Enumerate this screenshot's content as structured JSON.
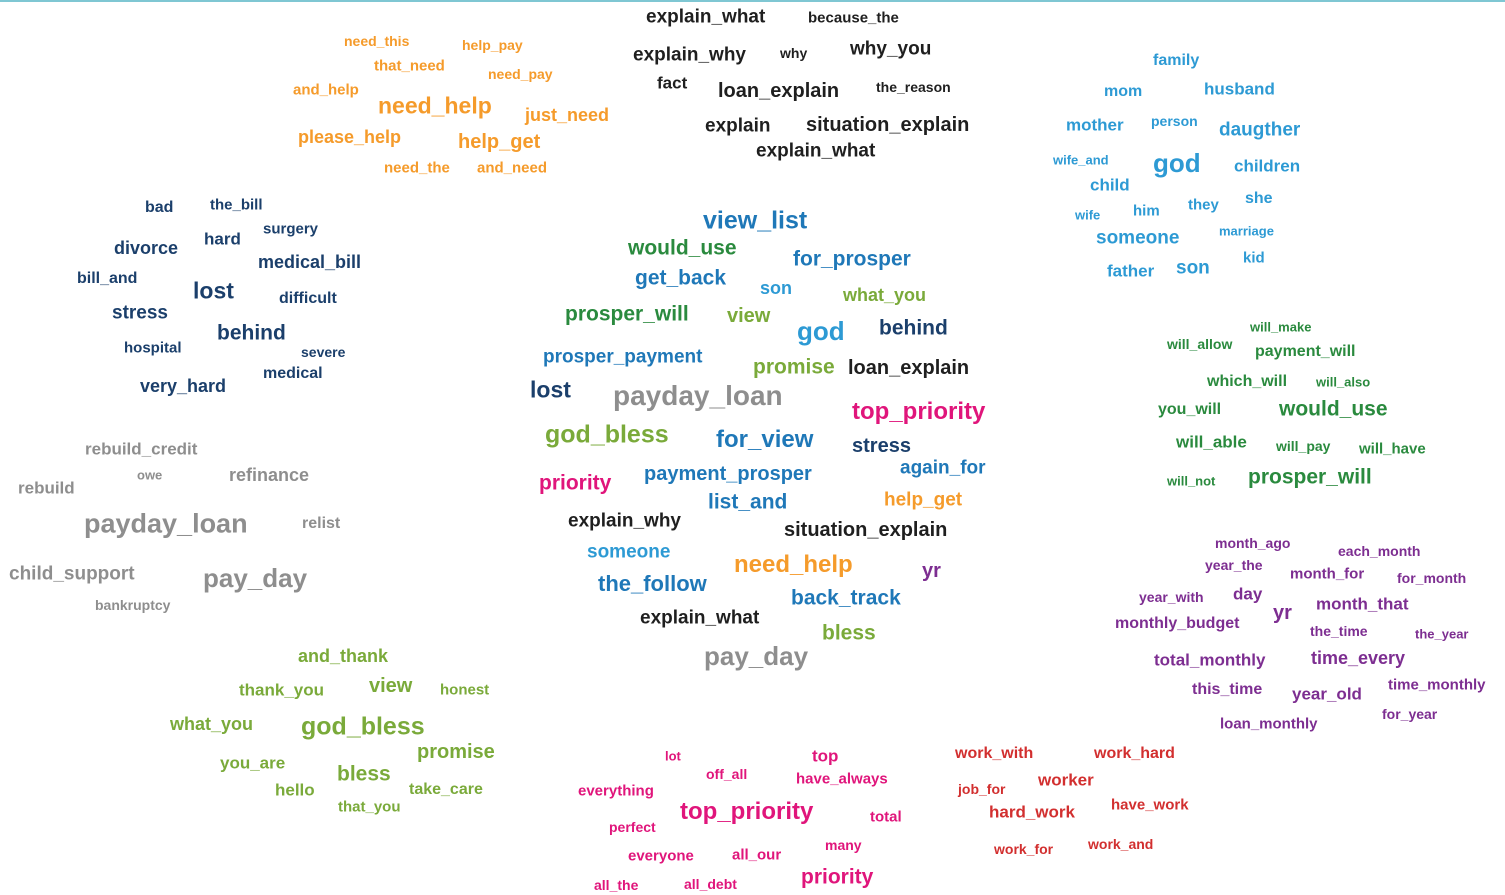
{
  "colors": {
    "orange": "#f59b2b",
    "black": "#1f1f1f",
    "lightblue": "#2d9ad4",
    "navy": "#1b3f6b",
    "gray": "#8e8e8e",
    "green": "#2a8a3e",
    "lime": "#7aaa3a",
    "blue": "#1f78b8",
    "magenta": "#e0157b",
    "purple": "#7d2e91",
    "red": "#d22f2f"
  },
  "words": [
    {
      "text": "need_this",
      "color": "orange",
      "size": 14
    },
    {
      "text": "help_pay",
      "color": "orange",
      "size": 14
    },
    {
      "text": "that_need",
      "color": "orange",
      "size": 15
    },
    {
      "text": "need_pay",
      "color": "orange",
      "size": 14
    },
    {
      "text": "and_help",
      "color": "orange",
      "size": 15
    },
    {
      "text": "need_help",
      "color": "orange",
      "size": 23
    },
    {
      "text": "just_need",
      "color": "orange",
      "size": 18
    },
    {
      "text": "please_help",
      "color": "orange",
      "size": 18
    },
    {
      "text": "help_get",
      "color": "orange",
      "size": 20
    },
    {
      "text": "need_the",
      "color": "orange",
      "size": 15
    },
    {
      "text": "and_need",
      "color": "orange",
      "size": 15
    },
    {
      "text": "explain_what",
      "color": "black",
      "size": 19
    },
    {
      "text": "because_the",
      "color": "black",
      "size": 15
    },
    {
      "text": "explain_why",
      "color": "black",
      "size": 19
    },
    {
      "text": "why",
      "color": "black",
      "size": 14
    },
    {
      "text": "why_you",
      "color": "black",
      "size": 19
    },
    {
      "text": "fact",
      "color": "black",
      "size": 17
    },
    {
      "text": "loan_explain",
      "color": "black",
      "size": 20
    },
    {
      "text": "the_reason",
      "color": "black",
      "size": 14
    },
    {
      "text": "explain",
      "color": "black",
      "size": 19
    },
    {
      "text": "situation_explain",
      "color": "black",
      "size": 20
    },
    {
      "text": "explain_what",
      "color": "black",
      "size": 19
    },
    {
      "text": "family",
      "color": "lightblue",
      "size": 16
    },
    {
      "text": "mom",
      "color": "lightblue",
      "size": 16
    },
    {
      "text": "husband",
      "color": "lightblue",
      "size": 17
    },
    {
      "text": "mother",
      "color": "lightblue",
      "size": 17
    },
    {
      "text": "person",
      "color": "lightblue",
      "size": 14
    },
    {
      "text": "daugther",
      "color": "lightblue",
      "size": 19
    },
    {
      "text": "wife_and",
      "color": "lightblue",
      "size": 13
    },
    {
      "text": "god",
      "color": "lightblue",
      "size": 26
    },
    {
      "text": "children",
      "color": "lightblue",
      "size": 17
    },
    {
      "text": "child",
      "color": "lightblue",
      "size": 17
    },
    {
      "text": "wife",
      "color": "lightblue",
      "size": 13
    },
    {
      "text": "him",
      "color": "lightblue",
      "size": 15
    },
    {
      "text": "they",
      "color": "lightblue",
      "size": 15
    },
    {
      "text": "she",
      "color": "lightblue",
      "size": 16
    },
    {
      "text": "someone",
      "color": "lightblue",
      "size": 19
    },
    {
      "text": "marriage",
      "color": "lightblue",
      "size": 13
    },
    {
      "text": "kid",
      "color": "lightblue",
      "size": 15
    },
    {
      "text": "father",
      "color": "lightblue",
      "size": 17
    },
    {
      "text": "son",
      "color": "lightblue",
      "size": 19
    },
    {
      "text": "bad",
      "color": "navy",
      "size": 16
    },
    {
      "text": "the_bill",
      "color": "navy",
      "size": 15
    },
    {
      "text": "surgery",
      "color": "navy",
      "size": 15
    },
    {
      "text": "hard",
      "color": "navy",
      "size": 17
    },
    {
      "text": "divorce",
      "color": "navy",
      "size": 18
    },
    {
      "text": "medical_bill",
      "color": "navy",
      "size": 18
    },
    {
      "text": "bill_and",
      "color": "navy",
      "size": 16
    },
    {
      "text": "lost",
      "color": "navy",
      "size": 23
    },
    {
      "text": "difficult",
      "color": "navy",
      "size": 16
    },
    {
      "text": "stress",
      "color": "navy",
      "size": 19
    },
    {
      "text": "behind",
      "color": "navy",
      "size": 21
    },
    {
      "text": "hospital",
      "color": "navy",
      "size": 15
    },
    {
      "text": "severe",
      "color": "navy",
      "size": 14
    },
    {
      "text": "medical",
      "color": "navy",
      "size": 16
    },
    {
      "text": "very_hard",
      "color": "navy",
      "size": 18
    },
    {
      "text": "rebuild_credit",
      "color": "gray",
      "size": 17
    },
    {
      "text": "owe",
      "color": "gray",
      "size": 13
    },
    {
      "text": "refinance",
      "color": "gray",
      "size": 18
    },
    {
      "text": "rebuild",
      "color": "gray",
      "size": 17
    },
    {
      "text": "payday_loan",
      "color": "gray",
      "size": 27
    },
    {
      "text": "relist",
      "color": "gray",
      "size": 16
    },
    {
      "text": "child_support",
      "color": "gray",
      "size": 19
    },
    {
      "text": "pay_day",
      "color": "gray",
      "size": 26
    },
    {
      "text": "bankruptcy",
      "color": "gray",
      "size": 14
    },
    {
      "text": "and_thank",
      "color": "lime",
      "size": 18
    },
    {
      "text": "thank_you",
      "color": "lime",
      "size": 17
    },
    {
      "text": "view",
      "color": "lime",
      "size": 20
    },
    {
      "text": "honest",
      "color": "lime",
      "size": 15
    },
    {
      "text": "what_you",
      "color": "lime",
      "size": 18
    },
    {
      "text": "god_bless",
      "color": "lime",
      "size": 25
    },
    {
      "text": "promise",
      "color": "lime",
      "size": 20
    },
    {
      "text": "you_are",
      "color": "lime",
      "size": 17
    },
    {
      "text": "bless",
      "color": "lime",
      "size": 21
    },
    {
      "text": "hello",
      "color": "lime",
      "size": 17
    },
    {
      "text": "take_care",
      "color": "lime",
      "size": 16
    },
    {
      "text": "that_you",
      "color": "lime",
      "size": 15
    },
    {
      "text": "view_list",
      "color": "blue",
      "size": 25
    },
    {
      "text": "would_use",
      "color": "green",
      "size": 21
    },
    {
      "text": "for_prosper",
      "color": "blue",
      "size": 21
    },
    {
      "text": "get_back",
      "color": "blue",
      "size": 21
    },
    {
      "text": "son",
      "color": "lightblue",
      "size": 18
    },
    {
      "text": "what_you",
      "color": "lime",
      "size": 18
    },
    {
      "text": "prosper_will",
      "color": "green",
      "size": 21
    },
    {
      "text": "view",
      "color": "lime",
      "size": 20
    },
    {
      "text": "god",
      "color": "lightblue",
      "size": 26
    },
    {
      "text": "behind",
      "color": "navy",
      "size": 21
    },
    {
      "text": "prosper_payment",
      "color": "blue",
      "size": 19
    },
    {
      "text": "promise",
      "color": "lime",
      "size": 21
    },
    {
      "text": "loan_explain",
      "color": "black",
      "size": 20
    },
    {
      "text": "lost",
      "color": "navy",
      "size": 23
    },
    {
      "text": "payday_loan",
      "color": "gray",
      "size": 28
    },
    {
      "text": "top_priority",
      "color": "magenta",
      "size": 24
    },
    {
      "text": "god_bless",
      "color": "lime",
      "size": 25
    },
    {
      "text": "for_view",
      "color": "blue",
      "size": 24
    },
    {
      "text": "stress",
      "color": "navy",
      "size": 20
    },
    {
      "text": "priority",
      "color": "magenta",
      "size": 21
    },
    {
      "text": "payment_prosper",
      "color": "blue",
      "size": 20
    },
    {
      "text": "again_for",
      "color": "blue",
      "size": 19
    },
    {
      "text": "list_and",
      "color": "blue",
      "size": 21
    },
    {
      "text": "help_get",
      "color": "orange",
      "size": 19
    },
    {
      "text": "explain_why",
      "color": "black",
      "size": 19
    },
    {
      "text": "situation_explain",
      "color": "black",
      "size": 20
    },
    {
      "text": "someone",
      "color": "lightblue",
      "size": 19
    },
    {
      "text": "need_help",
      "color": "orange",
      "size": 24
    },
    {
      "text": "yr",
      "color": "purple",
      "size": 20
    },
    {
      "text": "the_follow",
      "color": "blue",
      "size": 22
    },
    {
      "text": "back_track",
      "color": "blue",
      "size": 21
    },
    {
      "text": "explain_what",
      "color": "black",
      "size": 19
    },
    {
      "text": "bless",
      "color": "lime",
      "size": 21
    },
    {
      "text": "pay_day",
      "color": "gray",
      "size": 26
    },
    {
      "text": "will_make",
      "color": "green",
      "size": 13
    },
    {
      "text": "will_allow",
      "color": "green",
      "size": 14
    },
    {
      "text": "payment_will",
      "color": "green",
      "size": 16
    },
    {
      "text": "which_will",
      "color": "green",
      "size": 16
    },
    {
      "text": "will_also",
      "color": "green",
      "size": 13
    },
    {
      "text": "you_will",
      "color": "green",
      "size": 16
    },
    {
      "text": "would_use",
      "color": "green",
      "size": 21
    },
    {
      "text": "will_able",
      "color": "green",
      "size": 17
    },
    {
      "text": "will_pay",
      "color": "green",
      "size": 14
    },
    {
      "text": "will_have",
      "color": "green",
      "size": 15
    },
    {
      "text": "will_not",
      "color": "green",
      "size": 13
    },
    {
      "text": "prosper_will",
      "color": "green",
      "size": 21
    },
    {
      "text": "month_ago",
      "color": "purple",
      "size": 14
    },
    {
      "text": "each_month",
      "color": "purple",
      "size": 14
    },
    {
      "text": "year_the",
      "color": "purple",
      "size": 14
    },
    {
      "text": "month_for",
      "color": "purple",
      "size": 15
    },
    {
      "text": "for_month",
      "color": "purple",
      "size": 14
    },
    {
      "text": "year_with",
      "color": "purple",
      "size": 14
    },
    {
      "text": "day",
      "color": "purple",
      "size": 17
    },
    {
      "text": "month_that",
      "color": "purple",
      "size": 17
    },
    {
      "text": "monthly_budget",
      "color": "purple",
      "size": 16
    },
    {
      "text": "yr",
      "color": "purple",
      "size": 20
    },
    {
      "text": "the_time",
      "color": "purple",
      "size": 14
    },
    {
      "text": "the_year",
      "color": "purple",
      "size": 13
    },
    {
      "text": "total_monthly",
      "color": "purple",
      "size": 17
    },
    {
      "text": "time_every",
      "color": "purple",
      "size": 18
    },
    {
      "text": "this_time",
      "color": "purple",
      "size": 16
    },
    {
      "text": "year_old",
      "color": "purple",
      "size": 17
    },
    {
      "text": "time_monthly",
      "color": "purple",
      "size": 15
    },
    {
      "text": "for_year",
      "color": "purple",
      "size": 14
    },
    {
      "text": "loan_monthly",
      "color": "purple",
      "size": 15
    },
    {
      "text": "lot",
      "color": "magenta",
      "size": 13
    },
    {
      "text": "top",
      "color": "magenta",
      "size": 17
    },
    {
      "text": "off_all",
      "color": "magenta",
      "size": 14
    },
    {
      "text": "have_always",
      "color": "magenta",
      "size": 15
    },
    {
      "text": "everything",
      "color": "magenta",
      "size": 15
    },
    {
      "text": "top_priority",
      "color": "magenta",
      "size": 24
    },
    {
      "text": "perfect",
      "color": "magenta",
      "size": 14
    },
    {
      "text": "total",
      "color": "magenta",
      "size": 15
    },
    {
      "text": "many",
      "color": "magenta",
      "size": 14
    },
    {
      "text": "everyone",
      "color": "magenta",
      "size": 15
    },
    {
      "text": "all_our",
      "color": "magenta",
      "size": 15
    },
    {
      "text": "all_the",
      "color": "magenta",
      "size": 14
    },
    {
      "text": "all_debt",
      "color": "magenta",
      "size": 14
    },
    {
      "text": "priority",
      "color": "magenta",
      "size": 21
    },
    {
      "text": "work_with",
      "color": "red",
      "size": 16
    },
    {
      "text": "work_hard",
      "color": "red",
      "size": 16
    },
    {
      "text": "job_for",
      "color": "red",
      "size": 14
    },
    {
      "text": "worker",
      "color": "red",
      "size": 17
    },
    {
      "text": "hard_work",
      "color": "red",
      "size": 17
    },
    {
      "text": "have_work",
      "color": "red",
      "size": 15
    },
    {
      "text": "work_for",
      "color": "red",
      "size": 14
    },
    {
      "text": "work_and",
      "color": "red",
      "size": 14
    }
  ]
}
